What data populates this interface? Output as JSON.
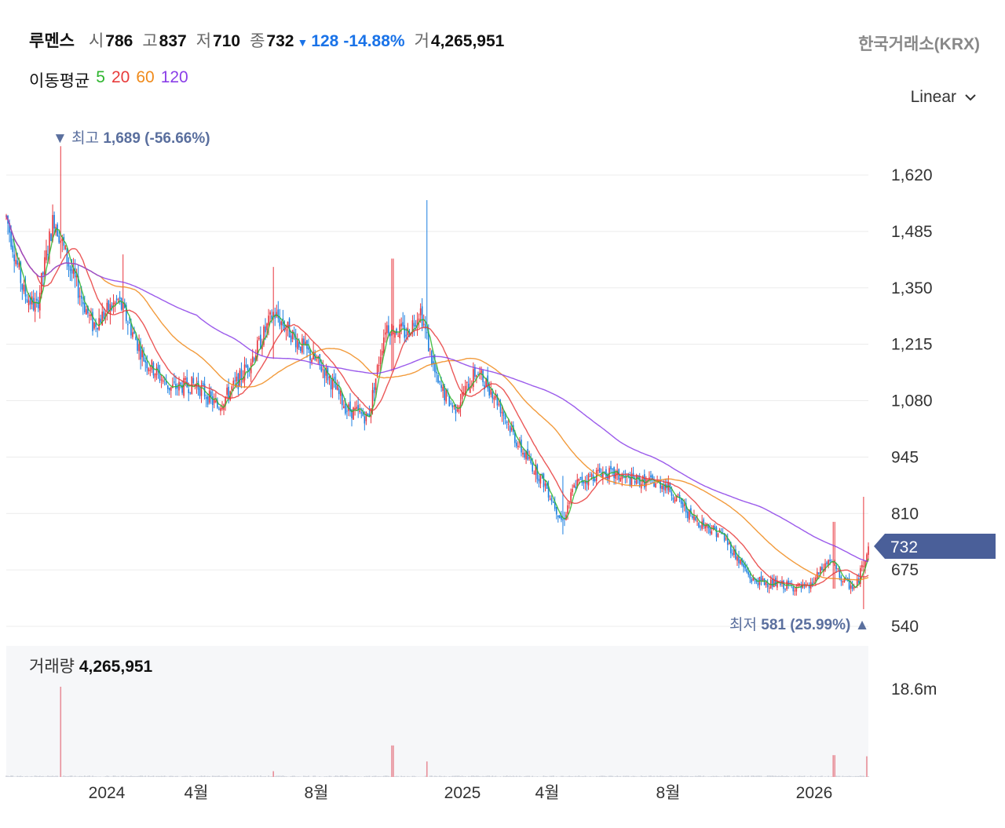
{
  "header": {
    "name": "루멘스",
    "open_label": "시",
    "open": "786",
    "high_label": "고",
    "high": "837",
    "low_label": "저",
    "low": "710",
    "close_label": "종",
    "close": "732",
    "change": "128",
    "change_pct": "-14.88%",
    "volume_label": "거",
    "volume": "4,265,951",
    "exchange": "한국거래소(KRX)"
  },
  "moving_average": {
    "label": "이동평균",
    "periods": [
      {
        "period": "5",
        "color": "#2db52d"
      },
      {
        "period": "20",
        "color": "#e83b3b"
      },
      {
        "period": "60",
        "color": "#f08a1a"
      },
      {
        "period": "120",
        "color": "#8a3ee8"
      }
    ]
  },
  "scale_selector": {
    "value": "Linear"
  },
  "colors": {
    "up": "#e8333b",
    "down": "#1b7fe0",
    "price_tag": "#4a5f99",
    "annotation": "#5a6f9e"
  },
  "annotations": {
    "high": {
      "prefix": "최고",
      "value": "1,689",
      "pct": "(-56.66%)"
    },
    "low": {
      "prefix": "최저",
      "value": "581",
      "pct": "(25.99%)"
    }
  },
  "current_price_tag": "732",
  "volume_panel": {
    "label": "거래량",
    "value": "4,265,951",
    "axis_label": "18.6m"
  },
  "chart_data": {
    "type": "candlestick",
    "price_axis": {
      "ticks": [
        "1,620",
        "1,485",
        "1,350",
        "1,215",
        "1,080",
        "945",
        "810",
        "675",
        "540"
      ],
      "min": 540,
      "max": 1620
    },
    "volume_axis": {
      "max_label": "18.6m",
      "max": 18600000
    },
    "x_ticks": [
      "2024",
      "4월",
      "8월",
      "2025",
      "4월",
      "8월",
      "2026"
    ],
    "grid": true,
    "series": [
      {
        "name": "5",
        "type": "line"
      },
      {
        "name": "20",
        "type": "line"
      },
      {
        "name": "60",
        "type": "line"
      },
      {
        "name": "120",
        "type": "line"
      }
    ],
    "price_path": [
      [
        0,
        1520
      ],
      [
        0.02,
        1340
      ],
      [
        0.035,
        1300
      ],
      [
        0.055,
        1520
      ],
      [
        0.075,
        1390
      ],
      [
        0.1,
        1260
      ],
      [
        0.13,
        1320
      ],
      [
        0.16,
        1180
      ],
      [
        0.19,
        1110
      ],
      [
        0.22,
        1120
      ],
      [
        0.245,
        1065
      ],
      [
        0.27,
        1130
      ],
      [
        0.29,
        1200
      ],
      [
        0.31,
        1290
      ],
      [
        0.345,
        1205
      ],
      [
        0.37,
        1150
      ],
      [
        0.395,
        1060
      ],
      [
        0.42,
        1040
      ],
      [
        0.44,
        1260
      ],
      [
        0.465,
        1240
      ],
      [
        0.48,
        1300
      ],
      [
        0.5,
        1120
      ],
      [
        0.52,
        1060
      ],
      [
        0.545,
        1150
      ],
      [
        0.565,
        1100
      ],
      [
        0.595,
        970
      ],
      [
        0.625,
        880
      ],
      [
        0.645,
        790
      ],
      [
        0.66,
        880
      ],
      [
        0.69,
        910
      ],
      [
        0.725,
        890
      ],
      [
        0.765,
        880
      ],
      [
        0.795,
        800
      ],
      [
        0.83,
        760
      ],
      [
        0.865,
        650
      ],
      [
        0.895,
        640
      ],
      [
        0.93,
        630
      ],
      [
        0.955,
        700
      ],
      [
        0.97,
        650
      ],
      [
        0.985,
        630
      ],
      [
        1,
        732
      ]
    ],
    "spikes": [
      {
        "at": 0.063,
        "high": 1689,
        "low": 1420,
        "up": true
      },
      {
        "at": 0.135,
        "high": 1430,
        "low": 1250,
        "up": true
      },
      {
        "at": 0.31,
        "high": 1400,
        "low": 1180,
        "up": true
      },
      {
        "at": 0.448,
        "high": 1420,
        "low": 1150,
        "up": true
      },
      {
        "at": 0.488,
        "high": 1560,
        "low": 1230,
        "down": true
      },
      {
        "at": 0.645,
        "high": 900,
        "low": 760,
        "down": true
      },
      {
        "at": 0.96,
        "high": 790,
        "low": 630,
        "up": true
      },
      {
        "at": 0.994,
        "high": 850,
        "low": 581,
        "up": true
      }
    ],
    "volume_spikes": [
      {
        "at": 0.063,
        "value": 18600000
      },
      {
        "at": 0.31,
        "value": 1200000
      },
      {
        "at": 0.448,
        "value": 6500000
      },
      {
        "at": 0.488,
        "value": 3200000
      },
      {
        "at": 0.96,
        "value": 4500000
      },
      {
        "at": 0.998,
        "value": 4265951
      }
    ]
  }
}
